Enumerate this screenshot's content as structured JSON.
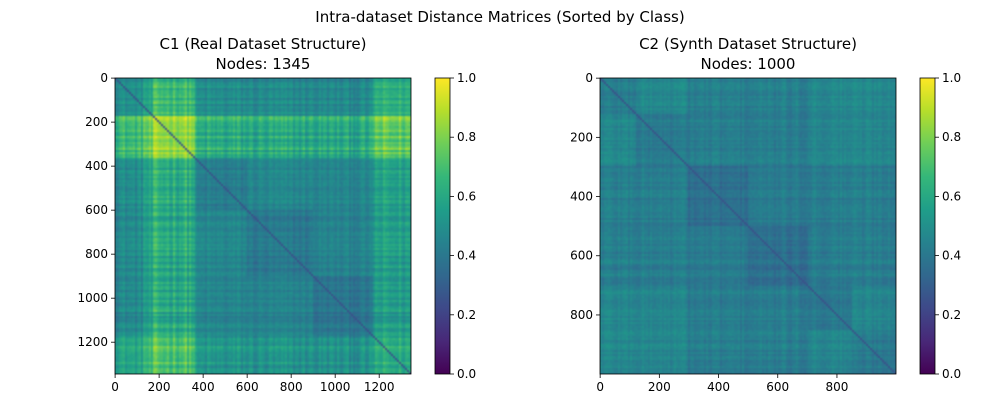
{
  "figure": {
    "suptitle": "Intra-dataset Distance Matrices (Sorted by Class)"
  },
  "colormap": {
    "name": "viridis",
    "stops": [
      "#440154",
      "#482878",
      "#3e4989",
      "#31688e",
      "#26828e",
      "#1f9e89",
      "#35b779",
      "#6ece58",
      "#b5de2b",
      "#fde725"
    ]
  },
  "chart_data": [
    {
      "type": "heatmap",
      "title_line1": "C1 (Real Dataset Structure)",
      "title_line2": "Nodes: 1345",
      "n": 1345,
      "xlim": [
        0,
        1345
      ],
      "ylim": [
        1345,
        0
      ],
      "xticks": [
        0,
        200,
        400,
        600,
        800,
        1000,
        1200
      ],
      "yticks": [
        0,
        200,
        400,
        600,
        800,
        1000,
        1200
      ],
      "colorbar": {
        "range": [
          0.0,
          1.0
        ],
        "ticks": [
          "0.0",
          "0.2",
          "0.4",
          "0.6",
          "0.8",
          "1.0"
        ]
      },
      "diagonal_value": 0.0,
      "class_blocks": [
        {
          "start": 0,
          "end": 170,
          "label_value": 0.58
        },
        {
          "start": 170,
          "end": 360,
          "label_value": 0.72
        },
        {
          "start": 360,
          "end": 600,
          "label_value": 0.5
        },
        {
          "start": 600,
          "end": 900,
          "label_value": 0.48
        },
        {
          "start": 900,
          "end": 1170,
          "label_value": 0.46
        },
        {
          "start": 1170,
          "end": 1345,
          "label_value": 0.55
        }
      ],
      "bright_bands": [
        {
          "start": 170,
          "end": 360,
          "axis": "row",
          "value": 0.72
        },
        {
          "start": 130,
          "end": 360,
          "axis": "col",
          "value": 0.72
        },
        {
          "start": 1170,
          "end": 1345,
          "axis": "col",
          "value": 0.62
        }
      ],
      "block_ranges": [
        [
          0.45,
          0.62
        ],
        [
          0.62,
          0.85
        ],
        [
          0.35,
          0.55
        ],
        [
          0.35,
          0.52
        ],
        [
          0.35,
          0.5
        ],
        [
          0.45,
          0.75
        ]
      ]
    },
    {
      "type": "heatmap",
      "title_line1": "C2 (Synth Dataset Structure)",
      "title_line2": "Nodes: 1000",
      "n": 1000,
      "xlim": [
        0,
        1000
      ],
      "ylim": [
        1000,
        0
      ],
      "xticks": [
        0,
        200,
        400,
        600,
        800
      ],
      "yticks": [
        0,
        200,
        400,
        600,
        800
      ],
      "colorbar": {
        "range": [
          0.0,
          1.0
        ],
        "ticks": [
          "0.0",
          "0.2",
          "0.4",
          "0.6",
          "0.8",
          "1.0"
        ]
      },
      "diagonal_value": 0.0,
      "class_blocks": [
        {
          "start": 0,
          "end": 120,
          "label_value": 0.48
        },
        {
          "start": 120,
          "end": 300,
          "label_value": 0.45
        },
        {
          "start": 300,
          "end": 500,
          "label_value": 0.4
        },
        {
          "start": 500,
          "end": 700,
          "label_value": 0.4
        },
        {
          "start": 700,
          "end": 850,
          "label_value": 0.45
        },
        {
          "start": 850,
          "end": 1000,
          "label_value": 0.44
        }
      ],
      "block_ranges": [
        [
          0.38,
          0.55
        ],
        [
          0.38,
          0.52
        ],
        [
          0.33,
          0.47
        ],
        [
          0.33,
          0.47
        ],
        [
          0.38,
          0.52
        ],
        [
          0.38,
          0.52
        ]
      ]
    }
  ]
}
